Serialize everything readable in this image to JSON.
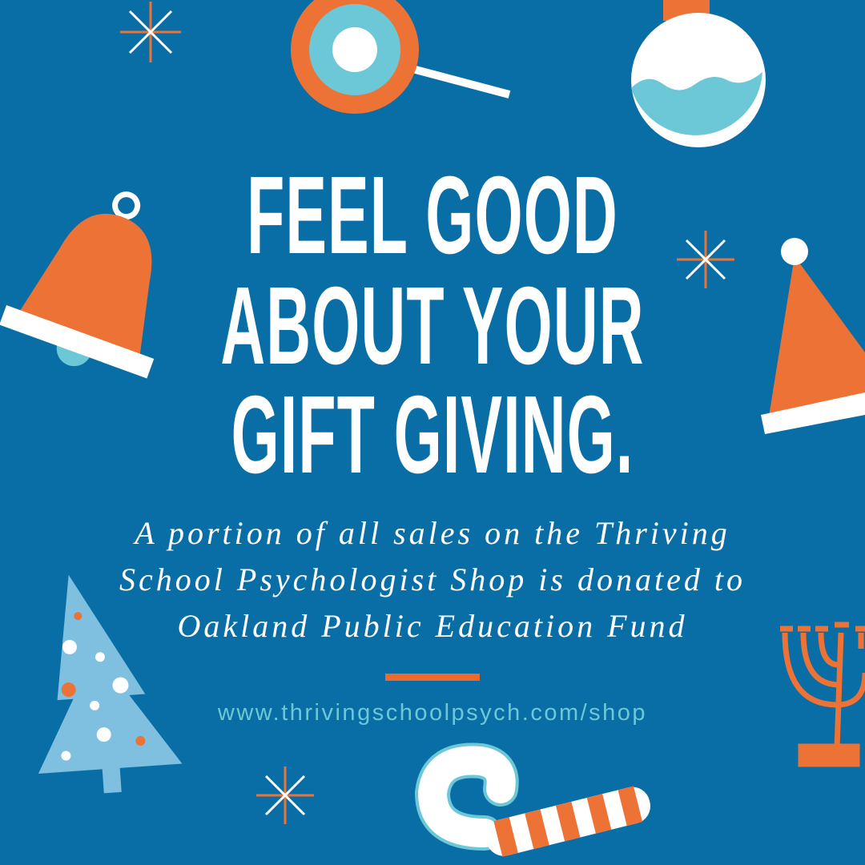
{
  "headline": [
    "FEEL GOOD",
    "ABOUT YOUR",
    "GIFT GIVING."
  ],
  "message": [
    "A portion of all sales on the Thriving",
    "School Psychologist Shop is donated to",
    "Oakland Public Education Fund"
  ],
  "url": "www.thrivingschoolpsych.com/shop",
  "colors": {
    "background": "#0a6ea6",
    "orange": "#ec7235",
    "teal": "#6cc8d6",
    "light_blue": "#7fbfdf",
    "white": "#ffffff"
  },
  "icons": [
    "sparkle-icon",
    "lollipop-icon",
    "ornament-icon",
    "bell-icon",
    "santa-hat-icon",
    "christmas-tree-icon",
    "menorah-icon",
    "candy-cane-icon"
  ]
}
